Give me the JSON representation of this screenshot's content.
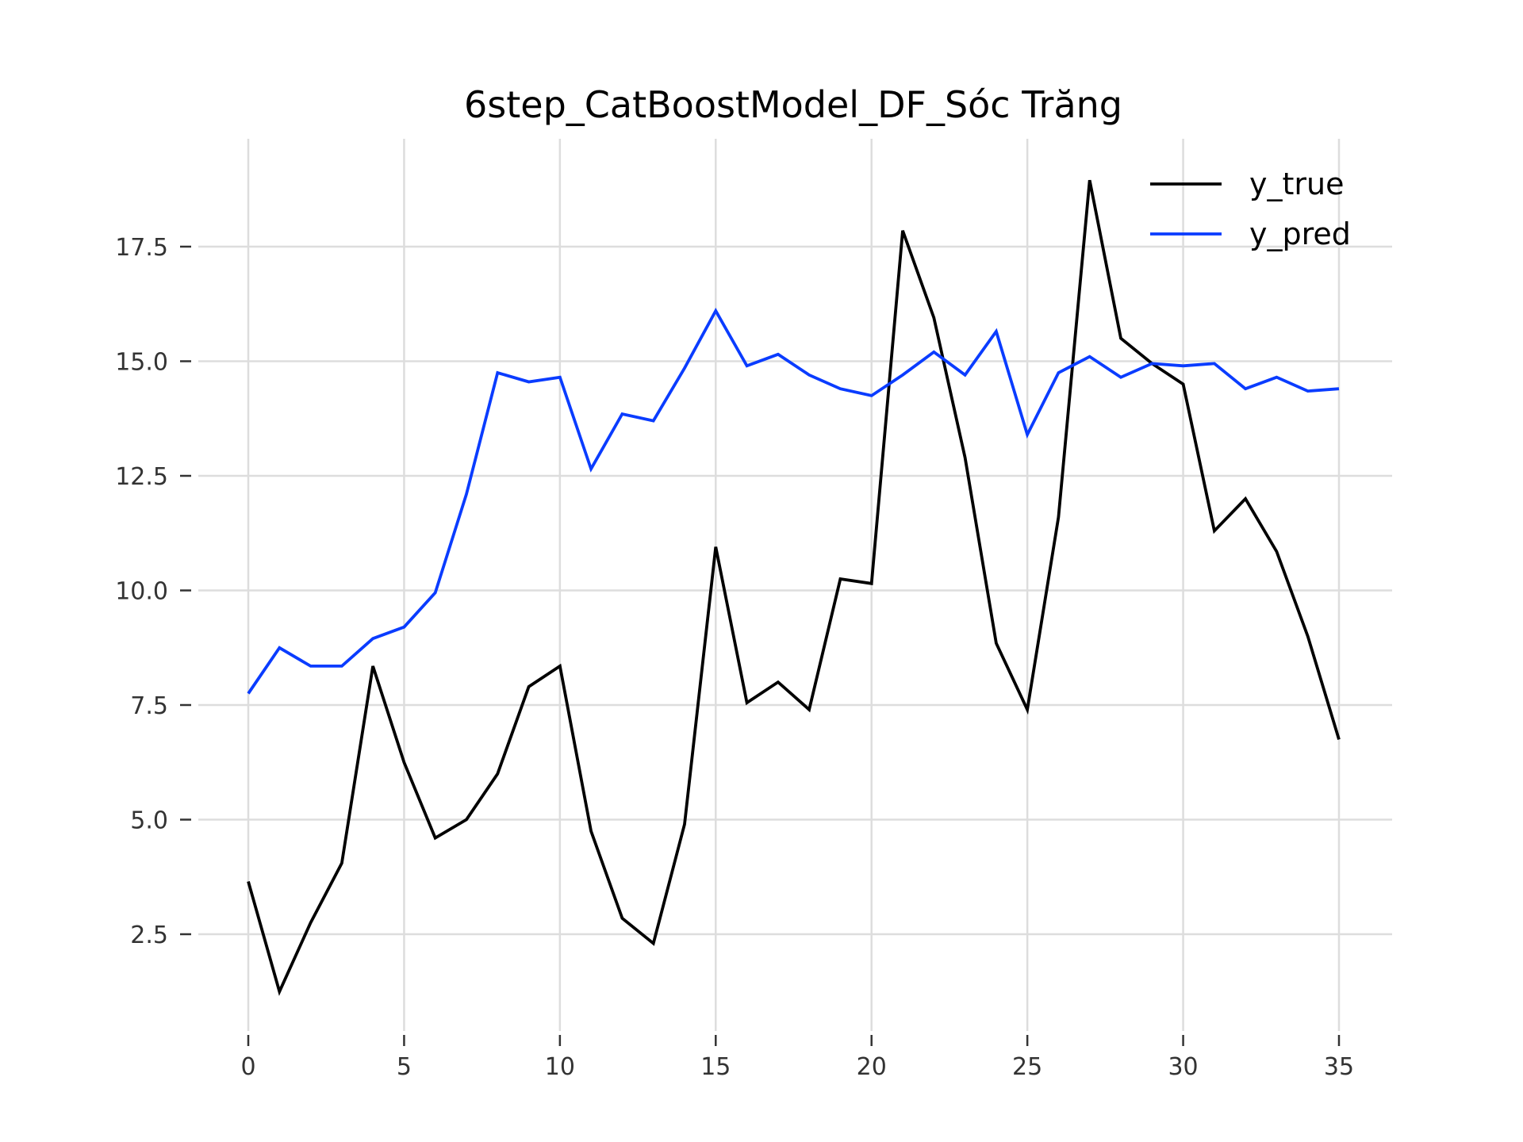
{
  "chart_data": {
    "type": "line",
    "title": "6step_CatBoostModel_DF_Sóc Trăng",
    "xlabel": "",
    "ylabel": "",
    "xlim": [
      -1.75,
      36.75
    ],
    "ylim": [
      0.9,
      19.5
    ],
    "xticks": [
      0,
      5,
      10,
      15,
      20,
      25,
      30,
      35
    ],
    "xtick_labels": [
      "0",
      "5",
      "10",
      "15",
      "20",
      "25",
      "30",
      "35"
    ],
    "yticks": [
      2.5,
      5.0,
      7.5,
      10.0,
      12.5,
      15.0,
      17.5
    ],
    "ytick_labels": [
      "2.5",
      "5.0",
      "7.5",
      "10.0",
      "12.5",
      "15.0",
      "17.5"
    ],
    "grid": true,
    "legend_position": "top-right",
    "x": [
      0,
      1,
      2,
      3,
      4,
      5,
      6,
      7,
      8,
      9,
      10,
      11,
      12,
      13,
      14,
      15,
      16,
      17,
      18,
      19,
      20,
      21,
      22,
      23,
      24,
      25,
      26,
      27,
      28,
      29,
      30,
      31,
      32,
      33,
      34,
      35
    ],
    "series": [
      {
        "name": "y_true",
        "color": "#000000",
        "values": [
          3.65,
          1.25,
          2.75,
          4.05,
          8.35,
          6.25,
          4.6,
          5.0,
          6.0,
          7.9,
          8.35,
          4.75,
          2.85,
          2.3,
          4.9,
          10.95,
          7.55,
          8.0,
          7.4,
          10.25,
          10.15,
          17.85,
          15.95,
          12.9,
          8.85,
          7.4,
          11.6,
          18.95,
          15.5,
          14.95,
          14.5,
          11.3,
          12.0,
          10.85,
          9.0,
          6.75
        ]
      },
      {
        "name": "y_pred",
        "color": "#0a3cff",
        "values": [
          7.75,
          8.75,
          8.35,
          8.35,
          8.95,
          9.2,
          9.95,
          12.1,
          14.75,
          14.55,
          14.65,
          12.65,
          13.85,
          13.7,
          14.85,
          16.1,
          14.9,
          15.15,
          14.7,
          14.4,
          14.25,
          14.7,
          15.2,
          14.7,
          15.65,
          13.4,
          14.75,
          15.1,
          14.65,
          14.95,
          14.9,
          14.95,
          14.4,
          14.65,
          14.35,
          14.4
        ]
      }
    ]
  }
}
